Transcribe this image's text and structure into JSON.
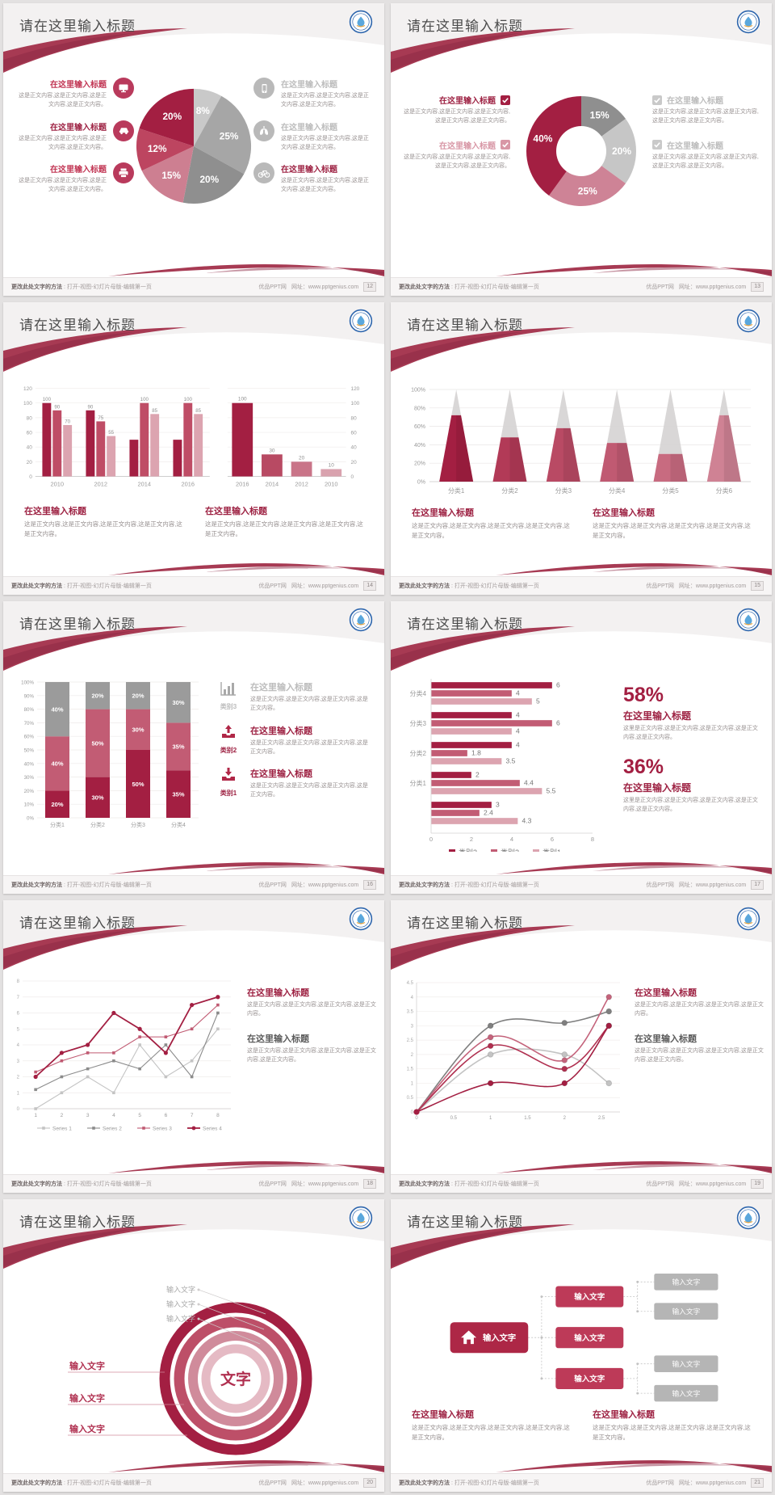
{
  "common": {
    "slide_title": "请在这里输入标题",
    "block_title": "在这里输入标题",
    "body_short": "这是正文内容,这是正文内容,这是正文内容,这是正文内容。",
    "body_long": "这是正文内容,这是正文内容,这是正文内容,这是正文内容,这是正文内容。",
    "body_alt": "这里是正文内容,这是正文内容,这是正文内容,这是正文内容,这是正文内容。",
    "input_text": "输入文字",
    "center_text": "文字",
    "pct_1": "58%",
    "pct_2": "36%"
  },
  "footer": {
    "left_bold": "更改此处文字的方法",
    "left_rest": " : 打开-视图-幻灯片母版-编辑第一页",
    "site": "优品PPT网",
    "url_label": "网址：www.pptgenius.com"
  },
  "pages": [
    "12",
    "13",
    "14",
    "15",
    "16",
    "17",
    "18",
    "19",
    "20",
    "21"
  ],
  "colors": {
    "dark_red": "#a31f42",
    "mid_red": "#c25c74",
    "light_pink": "#dca4b0",
    "gray_dark": "#8f8f8f",
    "gray_light": "#c9c9c9"
  },
  "chart_data": [
    {
      "id": "pie12",
      "type": "pie",
      "title": "",
      "values": [
        8,
        25,
        20,
        15,
        12,
        20
      ],
      "labels": [
        "8%",
        "25%",
        "20%",
        "15%",
        "12%",
        "20%"
      ],
      "colors": [
        "#c9c9c9",
        "#a6a6a6",
        "#8f8f8f",
        "#cd7f91",
        "#bd4560",
        "#a31f42"
      ]
    },
    {
      "id": "donut13",
      "type": "pie",
      "donut": true,
      "values": [
        15,
        20,
        25,
        40
      ],
      "labels": [
        "15%",
        "20%",
        "25%",
        "40%"
      ],
      "colors": [
        "#8f8f8f",
        "#c6c6c6",
        "#ce8396",
        "#a31f42"
      ]
    },
    {
      "id": "gbar14",
      "type": "bar",
      "categories": [
        "2010",
        "2012",
        "2014",
        "2016"
      ],
      "ylim": [
        0,
        120
      ],
      "yticks": [
        0,
        20,
        40,
        60,
        80,
        100,
        120
      ],
      "series": [
        {
          "name": "s1",
          "color": "#a31f42",
          "values": [
            100,
            90,
            50,
            50
          ],
          "labels": [
            "100",
            "90",
            null,
            null
          ]
        },
        {
          "name": "s2",
          "color": "#bf4d66",
          "values": [
            90,
            75,
            100,
            100
          ],
          "labels": [
            "90",
            "75",
            "100",
            "100"
          ]
        },
        {
          "name": "s3",
          "color": "#dca4b0",
          "values": [
            70,
            55,
            85,
            85
          ],
          "labels": [
            "70",
            "55",
            "85",
            "85"
          ]
        }
      ]
    },
    {
      "id": "rbar14",
      "type": "bar",
      "axis_side": "right",
      "categories": [
        "2016",
        "2014",
        "2012",
        "2010"
      ],
      "values": [
        100,
        30,
        20,
        10
      ],
      "labels": [
        "100",
        "30",
        "20",
        "10"
      ],
      "colors": [
        "#a31f42",
        "#b84a63",
        "#c97488",
        "#d9a2ae"
      ],
      "ylim": [
        0,
        120
      ],
      "yticks": [
        0,
        20,
        40,
        60,
        80,
        100,
        120
      ]
    },
    {
      "id": "cone15",
      "type": "bar",
      "subtype": "cone",
      "categories": [
        "分类1",
        "分类2",
        "分类3",
        "分类4",
        "分类5",
        "分类6"
      ],
      "values": [
        72,
        48,
        58,
        42,
        30,
        72
      ],
      "yticks": [
        "0%",
        "20%",
        "40%",
        "60%",
        "80%",
        "100%"
      ],
      "colors": [
        "#a31f42",
        "#b23a57",
        "#b94a64",
        "#c05a72",
        "#c86b80",
        "#cf8294"
      ],
      "top_color": "#d7d5d5"
    },
    {
      "id": "stack16",
      "type": "bar",
      "subtype": "stacked",
      "categories": [
        "分类1",
        "分类2",
        "分类3",
        "分类4"
      ],
      "yticks": [
        "0%",
        "10%",
        "20%",
        "30%",
        "40%",
        "50%",
        "60%",
        "70%",
        "80%",
        "90%",
        "100%"
      ],
      "series": [
        {
          "name": "bottom",
          "color": "#a31f42",
          "values": [
            20,
            30,
            50,
            35
          ]
        },
        {
          "name": "middle",
          "color": "#c25c74",
          "values": [
            40,
            50,
            30,
            35
          ]
        },
        {
          "name": "top",
          "color": "#9b9b9b",
          "values": [
            40,
            20,
            20,
            30
          ]
        }
      ]
    },
    {
      "id": "hbar17",
      "type": "bar",
      "subtype": "horizontal",
      "xlim": [
        0,
        8
      ],
      "xticks": [
        0,
        2,
        4,
        6,
        8
      ],
      "legend": [
        "类别3",
        "类别2",
        "类别1"
      ],
      "colors": [
        "#a31f42",
        "#c25c74",
        "#dca4b0"
      ],
      "groups": [
        {
          "label": "分类4",
          "values": [
            6,
            4,
            5
          ]
        },
        {
          "label": "分类3",
          "values": [
            4,
            6,
            4
          ]
        },
        {
          "label": "分类2",
          "values": [
            4,
            1.8,
            3.5
          ]
        },
        {
          "label": "分类1",
          "values": [
            2,
            4.4,
            5.5
          ]
        },
        {
          "label": "",
          "values": [
            3,
            2.4,
            4.3
          ]
        }
      ]
    },
    {
      "id": "line18",
      "type": "line",
      "x": [
        1,
        2,
        3,
        4,
        5,
        6,
        7,
        8
      ],
      "ylim": [
        0,
        8
      ],
      "yticks": [
        0,
        1,
        2,
        3,
        4,
        5,
        6,
        7,
        8
      ],
      "series": [
        {
          "name": "Series 1",
          "color": "#c4c4c4",
          "values": [
            0,
            1,
            2,
            1,
            4,
            2,
            3,
            5
          ]
        },
        {
          "name": "Series 2",
          "color": "#8b8b8b",
          "values": [
            1.2,
            2,
            2.5,
            3,
            2.5,
            4,
            2,
            6
          ]
        },
        {
          "name": "Series 3",
          "color": "#c05a72",
          "values": [
            2.3,
            3,
            3.5,
            3.5,
            4.5,
            4.5,
            5,
            6.5
          ]
        },
        {
          "name": "Series 4",
          "color": "#a31f42",
          "values": [
            2,
            3.5,
            4,
            6,
            5,
            3.5,
            6.5,
            7
          ]
        }
      ]
    },
    {
      "id": "curve19",
      "type": "line",
      "subtype": "smooth",
      "x": [
        0,
        1,
        2,
        2.6
      ],
      "xticks": [
        0,
        0.5,
        1,
        1.5,
        2,
        2.5
      ],
      "ylim": [
        0,
        4.5
      ],
      "yticks": [
        0,
        0.5,
        1,
        1.5,
        2,
        2.5,
        3,
        3.5,
        4,
        4.5
      ],
      "series": [
        {
          "name": "light-gray",
          "color": "#c3c3c3",
          "values": [
            0,
            2,
            2,
            1
          ]
        },
        {
          "name": "dark-gray",
          "color": "#7f7f7f",
          "values": [
            0,
            3,
            3.1,
            3.5
          ]
        },
        {
          "name": "pink",
          "color": "#c4637b",
          "values": [
            0,
            2.6,
            1.8,
            4
          ]
        },
        {
          "name": "red",
          "color": "#b03050",
          "values": [
            0,
            2.3,
            1.5,
            3
          ]
        },
        {
          "name": "dark-red",
          "color": "#a31f42",
          "values": [
            0,
            1,
            1,
            3
          ]
        }
      ]
    },
    {
      "id": "rings20",
      "type": "pie",
      "subtype": "concentric-rings",
      "center": "文字",
      "ring_colors": [
        "#a31f42",
        "#bd4f68",
        "#d08b9b",
        "#e5bac4"
      ],
      "top_labels": [
        "输入文字",
        "输入文字",
        "输入文字"
      ],
      "left_labels": [
        "输入文字",
        "输入文字",
        "输入文字"
      ]
    },
    {
      "id": "flow21",
      "type": "table",
      "subtype": "flow-diagram",
      "root": "输入文字",
      "mids": [
        "输入文字",
        "输入文字",
        "输入文字"
      ],
      "leaves": [
        "输入文字",
        "输入文字",
        "输入文字",
        "输入文字"
      ]
    }
  ]
}
